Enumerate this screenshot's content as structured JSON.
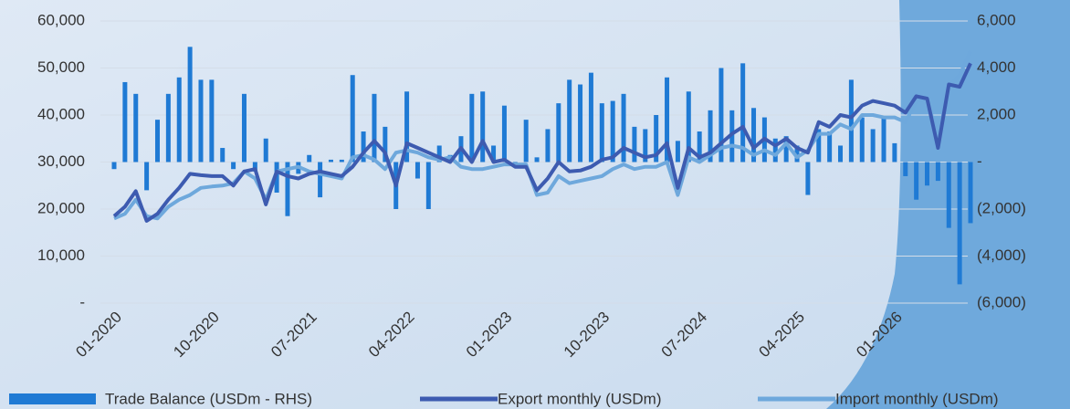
{
  "chart_data": {
    "type": "bar_line",
    "categories": [
      "01-2020",
      null,
      null,
      null,
      null,
      null,
      null,
      null,
      null,
      "10-2020",
      null,
      null,
      null,
      null,
      null,
      null,
      null,
      null,
      "07-2021",
      null,
      null,
      null,
      null,
      null,
      null,
      null,
      null,
      "04-2022",
      null,
      null,
      null,
      null,
      null,
      null,
      null,
      null,
      "01-2023",
      null,
      null,
      null,
      null,
      null,
      null,
      null,
      null,
      "10-2023",
      null,
      null,
      null,
      null,
      null,
      null,
      null,
      null,
      "07-2024",
      null,
      null,
      null,
      null,
      null,
      null,
      null,
      null,
      "04-2025",
      null,
      null,
      null,
      null,
      null,
      null,
      null,
      null,
      "01-2026",
      null,
      null,
      null,
      null,
      null,
      null,
      null
    ],
    "series": [
      {
        "name": "Trade Balance (USDm - RHS)",
        "kind": "bar",
        "axis": "y2",
        "color": "#1f7ad4",
        "values": [
          -300,
          3400,
          2900,
          -1200,
          1800,
          2900,
          3600,
          4900,
          3500,
          3500,
          600,
          -300,
          2900,
          -400,
          1000,
          -1300,
          -2300,
          -500,
          300,
          -1500,
          100,
          100,
          3700,
          1300,
          2900,
          1500,
          -2000,
          3000,
          -700,
          -2000,
          700,
          300,
          1100,
          2900,
          3000,
          700,
          2400,
          -100,
          1800,
          200,
          1400,
          2500,
          3500,
          3300,
          3800,
          2500,
          2600,
          2900,
          1500,
          1400,
          2000,
          3600,
          900,
          3000,
          1300,
          2200,
          4000,
          2200,
          4200,
          2300,
          1900,
          1000,
          1100,
          700,
          -1400,
          1400,
          1300,
          700,
          3500,
          1900,
          1400,
          1900,
          800,
          -600,
          -1600,
          -1000,
          -800,
          -2800,
          -5200,
          -2600
        ]
      },
      {
        "name": "Export monthly (USDm)",
        "kind": "line",
        "color": "#3d5bb0",
        "values": [
          18500,
          20500,
          23800,
          17500,
          19000,
          22000,
          24500,
          27500,
          27200,
          27000,
          27000,
          25000,
          28000,
          28500,
          21000,
          28000,
          27000,
          26500,
          27500,
          28000,
          27500,
          27000,
          29000,
          32000,
          34500,
          32000,
          25000,
          34000,
          33000,
          32000,
          31000,
          30000,
          33000,
          30000,
          34500,
          30000,
          30500,
          29000,
          29000,
          24000,
          26500,
          30000,
          28000,
          28200,
          29000,
          30500,
          31000,
          33000,
          32000,
          31000,
          31500,
          34000,
          24500,
          33000,
          31000,
          32000,
          34000,
          36000,
          37500,
          33000,
          35000,
          33500,
          35000,
          33000,
          32000,
          38500,
          37500,
          40000,
          39500,
          42000,
          43000,
          42500,
          42000,
          40500,
          44000,
          43500,
          33000,
          46500,
          46000,
          51000
        ]
      },
      {
        "name": "Import monthly (USDm)",
        "kind": "line",
        "color": "#6ea8dc",
        "values": [
          18000,
          19000,
          22000,
          18500,
          18000,
          20500,
          22000,
          23000,
          24500,
          24800,
          25000,
          25500,
          28000,
          26500,
          22000,
          28000,
          28500,
          29000,
          28000,
          27500,
          27000,
          26500,
          31000,
          31500,
          30500,
          28500,
          32000,
          32500,
          32000,
          31000,
          30500,
          31000,
          29000,
          28500,
          28500,
          29000,
          29500,
          29500,
          29500,
          23000,
          23500,
          27000,
          25500,
          26000,
          26500,
          27000,
          28500,
          29500,
          28500,
          29000,
          29000,
          30000,
          23000,
          31000,
          30000,
          31500,
          33000,
          33500,
          33000,
          31500,
          32500,
          31500,
          34000,
          31000,
          32500,
          36000,
          36000,
          38000,
          37000,
          40000,
          40000,
          39500,
          39500,
          38500,
          43000,
          43500,
          34500,
          46000,
          48500,
          53500
        ]
      }
    ],
    "ylim": [
      0,
      60000
    ],
    "yticks": [
      {
        "value": 0,
        "label": "-"
      },
      {
        "value": 10000,
        "label": "10,000"
      },
      {
        "value": 20000,
        "label": "20,000"
      },
      {
        "value": 30000,
        "label": "30,000"
      },
      {
        "value": 40000,
        "label": "40,000"
      },
      {
        "value": 50000,
        "label": "50,000"
      },
      {
        "value": 60000,
        "label": "60,000"
      }
    ],
    "y2lim": [
      -6000,
      6000
    ],
    "y2ticks": [
      {
        "value": -6000,
        "label": "(6,000)"
      },
      {
        "value": -4000,
        "label": "(4,000)"
      },
      {
        "value": -2000,
        "label": "(2,000)"
      },
      {
        "value": 0,
        "label": "-"
      },
      {
        "value": 2000,
        "label": "2,000"
      },
      {
        "value": 4000,
        "label": "4,000"
      },
      {
        "value": 6000,
        "label": "6,000"
      }
    ],
    "grid": true
  }
}
